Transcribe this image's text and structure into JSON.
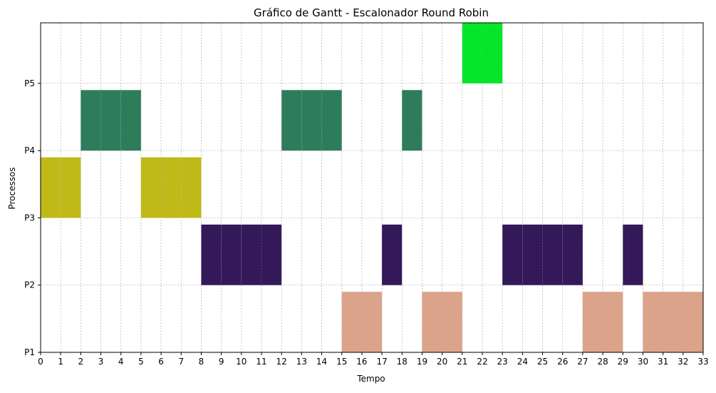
{
  "chart_data": {
    "type": "gantt",
    "title": "Gráfico de Gantt - Escalonador Round Robin",
    "xlabel": "Tempo",
    "ylabel": "Processos",
    "xlim": [
      0,
      33
    ],
    "ylim": [
      1,
      5.9
    ],
    "x_ticks": [
      "0",
      "1",
      "2",
      "3",
      "4",
      "5",
      "6",
      "7",
      "8",
      "9",
      "10",
      "11",
      "12",
      "13",
      "14",
      "15",
      "16",
      "17",
      "18",
      "19",
      "20",
      "21",
      "22",
      "23",
      "24",
      "25",
      "26",
      "27",
      "28",
      "29",
      "30",
      "31",
      "32",
      "33"
    ],
    "y_ticks": [
      {
        "label": "P1",
        "value": 1
      },
      {
        "label": "P2",
        "value": 2
      },
      {
        "label": "P3",
        "value": 3
      },
      {
        "label": "P4",
        "value": 4
      },
      {
        "label": "P5",
        "value": 5
      }
    ],
    "grid": true,
    "series": [
      {
        "name": "P1",
        "color": "#DBA38A",
        "y_start": 1.0,
        "y_end": 1.9,
        "intervals": [
          [
            15,
            16
          ],
          [
            16,
            17
          ],
          [
            19,
            20
          ],
          [
            20,
            21
          ],
          [
            27,
            28
          ],
          [
            28,
            29
          ],
          [
            30,
            31
          ],
          [
            31,
            32
          ],
          [
            32,
            33
          ]
        ]
      },
      {
        "name": "P2",
        "color": "#33185A",
        "y_start": 2.0,
        "y_end": 2.9,
        "intervals": [
          [
            8,
            9
          ],
          [
            9,
            10
          ],
          [
            10,
            11
          ],
          [
            11,
            12
          ],
          [
            17,
            18
          ],
          [
            23,
            24
          ],
          [
            24,
            25
          ],
          [
            25,
            26
          ],
          [
            26,
            27
          ],
          [
            29,
            30
          ]
        ]
      },
      {
        "name": "P3",
        "color": "#BFBA18",
        "y_start": 3.0,
        "y_end": 3.9,
        "intervals": [
          [
            0,
            1
          ],
          [
            1,
            2
          ],
          [
            5,
            6
          ],
          [
            6,
            7
          ],
          [
            7,
            8
          ]
        ]
      },
      {
        "name": "P4",
        "color": "#2E7D5A",
        "y_start": 4.0,
        "y_end": 4.9,
        "intervals": [
          [
            2,
            3
          ],
          [
            3,
            4
          ],
          [
            4,
            5
          ],
          [
            12,
            13
          ],
          [
            13,
            14
          ],
          [
            14,
            15
          ],
          [
            18,
            19
          ]
        ]
      },
      {
        "name": "P5",
        "color": "#05E62A",
        "y_start": 5.0,
        "y_end": 5.9,
        "intervals": [
          [
            21,
            22
          ],
          [
            22,
            23
          ]
        ]
      }
    ]
  }
}
